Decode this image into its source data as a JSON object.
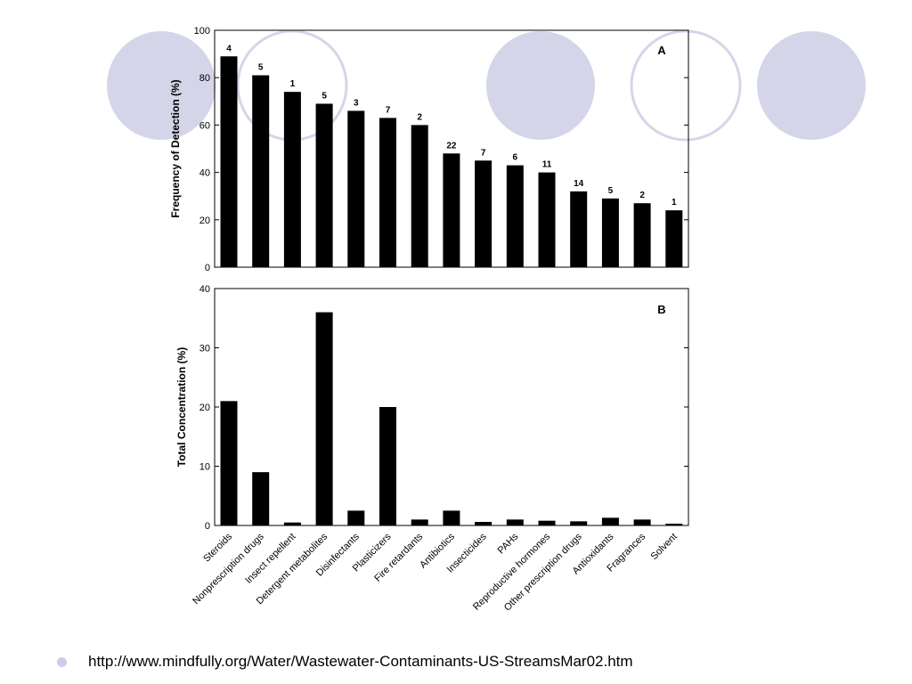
{
  "colors": {
    "circle_fill": "#d5d5ea",
    "circle_stroke": "#d5d5ea",
    "bar": "#000000",
    "bullet": "#cccce6"
  },
  "chart_data": [
    {
      "type": "bar",
      "panel_label": "A",
      "ylabel": "Frequency of Detection (%)",
      "ylim": [
        0,
        100
      ],
      "yticks": [
        0,
        20,
        40,
        60,
        80,
        100
      ],
      "categories": [
        "Steroids",
        "Nonprescription drugs",
        "Insect repellent",
        "Detergent metabolites",
        "Disinfectants",
        "Plasticizers",
        "Fire retardants",
        "Antibiotics",
        "Insecticides",
        "PAHs",
        "Reproductive hormones",
        "Other prescription drugs",
        "Antioxidants",
        "Fragrances",
        "Solvent"
      ],
      "values": [
        89,
        81,
        74,
        69,
        66,
        63,
        60,
        48,
        45,
        43,
        40,
        32,
        29,
        27,
        24
      ],
      "bar_counts": [
        "4",
        "5",
        "1",
        "5",
        "3",
        "7",
        "2",
        "22",
        "7",
        "6",
        "11",
        "14",
        "5",
        "2",
        "1"
      ]
    },
    {
      "type": "bar",
      "panel_label": "B",
      "ylabel": "Total Concentration (%)",
      "ylim": [
        0,
        40
      ],
      "yticks": [
        0,
        10,
        20,
        30,
        40
      ],
      "categories": [
        "Steroids",
        "Nonprescription drugs",
        "Insect repellent",
        "Detergent metabolites",
        "Disinfectants",
        "Plasticizers",
        "Fire retardants",
        "Antibiotics",
        "Insecticides",
        "PAHs",
        "Reproductive hormones",
        "Other prescription drugs",
        "Antioxidants",
        "Fragrances",
        "Solvent"
      ],
      "values": [
        21,
        9,
        0.5,
        36,
        2.5,
        20,
        1,
        2.5,
        0.6,
        1,
        0.8,
        0.7,
        1.3,
        1,
        0.3
      ]
    }
  ],
  "footer": {
    "url": "http://www.mindfully.org/Water/Wastewater-Contaminants-US-StreamsMar02.htm"
  }
}
